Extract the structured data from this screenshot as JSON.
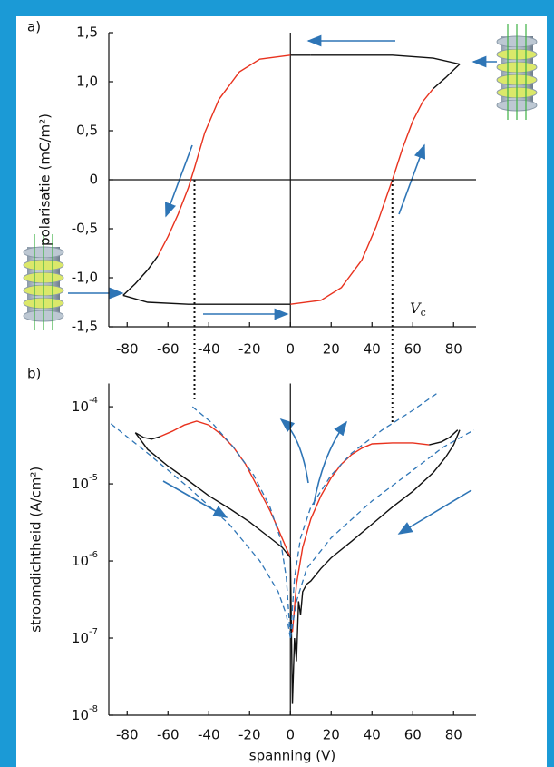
{
  "chart_data": [
    {
      "type": "line",
      "panel_label": "a)",
      "ylabel": "polarisatie (mC/m²)",
      "xlim": [
        -89,
        91
      ],
      "ylim": [
        -1.5,
        1.5
      ],
      "log_y": false,
      "zero_lines": true,
      "xticks": [
        -80,
        -60,
        -40,
        -20,
        0,
        20,
        40,
        60,
        80
      ],
      "yticks": [
        {
          "value": 1.5,
          "label": "1,5"
        },
        {
          "value": 1.0,
          "label": "1,0"
        },
        {
          "value": 0.5,
          "label": "0,5"
        },
        0,
        {
          "value": -0.5,
          "label": "-0,5"
        },
        {
          "value": -1.0,
          "label": "-1,0"
        },
        {
          "value": -1.5,
          "label": "-1,5"
        }
      ],
      "vlines": [
        -47,
        50
      ],
      "vc_label": {
        "main": "V",
        "sub": "c"
      },
      "series": [
        {
          "color": "#111111",
          "x": [
            -82,
            -70,
            -50,
            -20,
            0
          ],
          "values": [
            -1.18,
            -1.25,
            -1.27,
            -1.27,
            -1.27
          ]
        },
        {
          "color": "#e8321e",
          "x": [
            0,
            15,
            25,
            35,
            42,
            47,
            50,
            55,
            60,
            65,
            70
          ],
          "values": [
            -1.27,
            -1.23,
            -1.1,
            -0.82,
            -0.48,
            -0.18,
            0,
            0.32,
            0.6,
            0.8,
            0.93
          ]
        },
        {
          "color": "#111111",
          "x": [
            70,
            76,
            80,
            83,
            70,
            50,
            30,
            10
          ],
          "values": [
            0.93,
            1.04,
            1.12,
            1.18,
            1.24,
            1.27,
            1.27,
            1.27
          ]
        },
        {
          "color": "#111111",
          "x": [
            10,
            0
          ],
          "values": [
            1.27,
            1.27
          ]
        },
        {
          "color": "#e8321e",
          "x": [
            0,
            -15,
            -25,
            -35,
            -42,
            -47,
            -50,
            -55,
            -60,
            -65
          ],
          "values": [
            1.27,
            1.23,
            1.1,
            0.82,
            0.48,
            0.12,
            -0.08,
            -0.35,
            -0.58,
            -0.78
          ]
        },
        {
          "color": "#111111",
          "x": [
            -65,
            -70,
            -76,
            -82
          ],
          "values": [
            -0.78,
            -0.92,
            -1.06,
            -1.18
          ]
        }
      ]
    },
    {
      "type": "line",
      "panel_label": "b)",
      "ylabel": "stroomdichtheid (A/cm²)",
      "xlabel": "spanning (V)",
      "xlim": [
        -89,
        91
      ],
      "ylim": [
        1e-08,
        0.0002
      ],
      "log_y": true,
      "zero_lines": true,
      "xticks": [
        -80,
        -60,
        -40,
        -20,
        0,
        20,
        40,
        60,
        80
      ],
      "yticks": [
        {
          "value": 0.0001,
          "label": "10",
          "sup": "-4"
        },
        {
          "value": 1e-05,
          "label": "10",
          "sup": "-5"
        },
        {
          "value": 1e-06,
          "label": "10",
          "sup": "-6"
        },
        {
          "value": 1e-07,
          "label": "10",
          "sup": "-7"
        },
        {
          "value": 1e-08,
          "label": "10",
          "sup": "-8"
        }
      ],
      "series": [
        {
          "color": "#111111",
          "x": [
            -76,
            -72,
            -68,
            -64
          ],
          "values": [
            4.6e-05,
            4e-05,
            3.8e-05,
            4.1e-05
          ]
        },
        {
          "color": "#e8321e",
          "x": [
            -64,
            -58,
            -52,
            -46,
            -40,
            -34,
            -28,
            -22,
            -16,
            -10,
            -6,
            -3,
            0
          ],
          "values": [
            4.1e-05,
            4.8e-05,
            5.8e-05,
            6.5e-05,
            5.8e-05,
            4.4e-05,
            3e-05,
            1.8e-05,
            9e-06,
            4.5e-06,
            2.6e-06,
            1.7e-06,
            1.1e-06
          ]
        },
        {
          "color": "#111111",
          "x": [
            -76,
            -70,
            -60,
            -50,
            -40,
            -30,
            -20,
            -10,
            -4,
            0,
            1,
            2,
            3,
            4,
            5,
            6,
            8,
            10,
            15,
            20,
            30,
            40,
            50,
            60,
            70,
            76,
            80,
            83
          ],
          "values": [
            4.6e-05,
            2.8e-05,
            1.7e-05,
            1.1e-05,
            7e-06,
            4.8e-06,
            3.2e-06,
            2e-06,
            1.5e-06,
            1.1e-06,
            1.4e-08,
            1e-07,
            5e-08,
            3e-07,
            2e-07,
            4e-07,
            5e-07,
            5.5e-07,
            8e-07,
            1.1e-06,
            1.8e-06,
            3e-06,
            5e-06,
            8e-06,
            1.4e-05,
            2.2e-05,
            3.2e-05,
            5e-05
          ]
        },
        {
          "color": "#e8321e",
          "x": [
            1,
            3,
            6,
            10,
            15,
            20,
            25,
            30,
            35,
            40,
            50,
            60,
            68
          ],
          "values": [
            1.2e-07,
            5e-07,
            1.5e-06,
            3.5e-06,
            7e-06,
            1.2e-05,
            1.8e-05,
            2.4e-05,
            2.9e-05,
            3.3e-05,
            3.4e-05,
            3.4e-05,
            3.2e-05
          ]
        },
        {
          "color": "#111111",
          "x": [
            68,
            74,
            78,
            82
          ],
          "values": [
            3.2e-05,
            3.5e-05,
            4e-05,
            5e-05
          ]
        },
        {
          "color": "#2e75b6",
          "dashed": true,
          "x": [
            -48,
            -38,
            -28,
            -18,
            -10,
            -5,
            -2,
            0
          ],
          "values": [
            0.0001,
            6e-05,
            3e-05,
            1.3e-05,
            5e-06,
            2e-06,
            6e-07,
            1e-07
          ]
        },
        {
          "color": "#2e75b6",
          "dashed": true,
          "x": [
            -88,
            -70,
            -50,
            -30,
            -15,
            -6,
            -2,
            0
          ],
          "values": [
            6e-05,
            2.5e-05,
            9e-06,
            3e-06,
            1e-06,
            4e-07,
            2e-07,
            1e-07
          ]
        },
        {
          "color": "#2e75b6",
          "dashed": true,
          "x": [
            0,
            2,
            5,
            10,
            20,
            30,
            45,
            60,
            72
          ],
          "values": [
            1e-07,
            6e-07,
            2e-06,
            5e-06,
            1.3e-05,
            2.5e-05,
            5e-05,
            9e-05,
            0.00015
          ]
        },
        {
          "color": "#2e75b6",
          "dashed": true,
          "x": [
            0,
            3,
            8,
            20,
            40,
            60,
            75,
            90
          ],
          "values": [
            1e-07,
            3e-07,
            8e-07,
            2e-06,
            6e-06,
            1.5e-05,
            3e-05,
            5e-05
          ]
        }
      ]
    }
  ]
}
